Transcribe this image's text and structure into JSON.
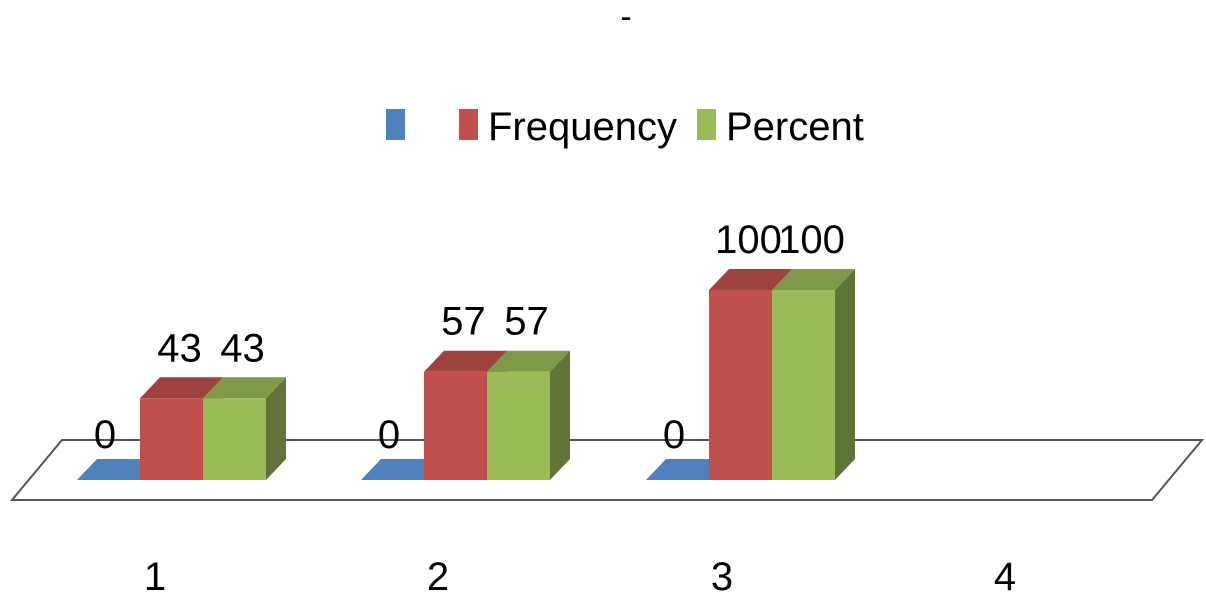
{
  "chart_data": {
    "type": "bar",
    "title": "-",
    "categories": [
      "1",
      "2",
      "3",
      "4"
    ],
    "series": [
      {
        "name": "",
        "color": "#4F81BD",
        "values": [
          0,
          0,
          0,
          null
        ]
      },
      {
        "name": "Frequency",
        "color": "#C0504D",
        "values": [
          43,
          57,
          100,
          null
        ]
      },
      {
        "name": "Percent",
        "color": "#9BBB59",
        "values": [
          43,
          57,
          100,
          null
        ]
      }
    ],
    "data_labels": [
      "0",
      "43",
      "43",
      "0",
      "57",
      "57",
      "0",
      "100",
      "100"
    ],
    "ylim": [
      0,
      100
    ],
    "grid": false,
    "legend": "top",
    "style": "3d-column"
  }
}
